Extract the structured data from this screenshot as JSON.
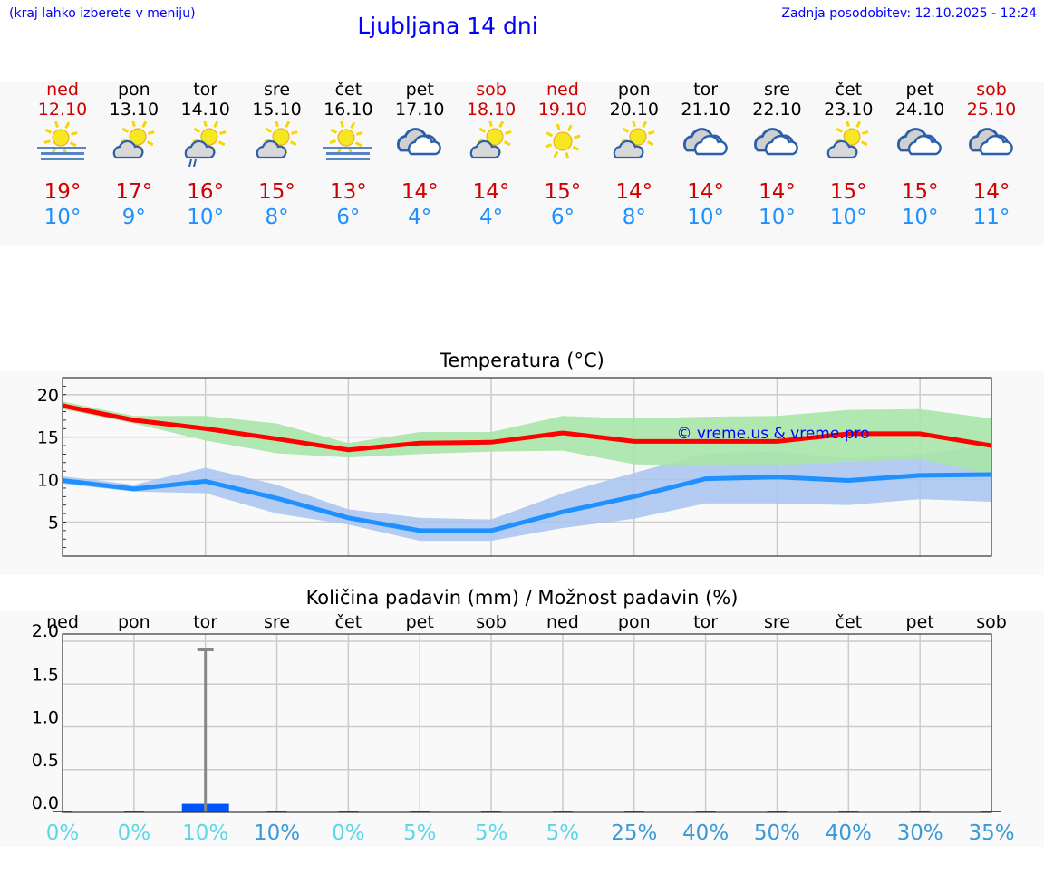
{
  "header": {
    "menu_note": "(kraj lahko izberete v meniju)",
    "title": "Ljubljana 14 dni",
    "updated": "Zadnja posodobitev: 12.10.2025 - 12:24"
  },
  "colors": {
    "weekend": "#d00000",
    "max_temp": "#d00000",
    "min_temp": "#1e90ff",
    "max_line": "#ff0000",
    "min_line": "#1e90ff",
    "max_band": "#a8e6a8",
    "min_band": "#a8c4f0",
    "precip_bar": "#0055ff",
    "pct_low": "#5ad8e8",
    "pct_high": "#3a9ad8"
  },
  "days": [
    {
      "name": "ned",
      "date": "12.10",
      "weekend": true,
      "icon": "fog-sun-icon",
      "max": "19°",
      "min": "10°"
    },
    {
      "name": "pon",
      "date": "13.10",
      "weekend": false,
      "icon": "partly-cloudy-icon",
      "max": "17°",
      "min": "9°"
    },
    {
      "name": "tor",
      "date": "14.10",
      "weekend": false,
      "icon": "partly-cloudy-rain-icon",
      "max": "16°",
      "min": "10°"
    },
    {
      "name": "sre",
      "date": "15.10",
      "weekend": false,
      "icon": "partly-cloudy-icon",
      "max": "15°",
      "min": "8°"
    },
    {
      "name": "čet",
      "date": "16.10",
      "weekend": false,
      "icon": "fog-sun-icon",
      "max": "13°",
      "min": "6°"
    },
    {
      "name": "pet",
      "date": "17.10",
      "weekend": false,
      "icon": "cloudy-icon",
      "max": "14°",
      "min": "4°"
    },
    {
      "name": "sob",
      "date": "18.10",
      "weekend": true,
      "icon": "partly-cloudy-icon",
      "max": "14°",
      "min": "4°"
    },
    {
      "name": "ned",
      "date": "19.10",
      "weekend": true,
      "icon": "sunny-icon",
      "max": "15°",
      "min": "6°"
    },
    {
      "name": "pon",
      "date": "20.10",
      "weekend": false,
      "icon": "partly-cloudy-icon",
      "max": "14°",
      "min": "8°"
    },
    {
      "name": "tor",
      "date": "21.10",
      "weekend": false,
      "icon": "cloudy-icon",
      "max": "14°",
      "min": "10°"
    },
    {
      "name": "sre",
      "date": "22.10",
      "weekend": false,
      "icon": "cloudy-icon",
      "max": "14°",
      "min": "10°"
    },
    {
      "name": "čet",
      "date": "23.10",
      "weekend": false,
      "icon": "partly-cloudy-icon",
      "max": "15°",
      "min": "10°"
    },
    {
      "name": "pet",
      "date": "24.10",
      "weekend": false,
      "icon": "cloudy-icon",
      "max": "15°",
      "min": "10°"
    },
    {
      "name": "sob",
      "date": "25.10",
      "weekend": true,
      "icon": "cloudy-icon",
      "max": "14°",
      "min": "11°"
    }
  ],
  "chart_data": [
    {
      "type": "line",
      "title": "Temperatura (°C)",
      "watermark": "© vreme.us & vreme.pro",
      "ylim": [
        1,
        22
      ],
      "yticks": [
        5,
        10,
        15,
        20
      ],
      "grid": true,
      "series": [
        {
          "role": "max",
          "values": [
            18.7,
            17.0,
            16.0,
            14.8,
            13.5,
            14.3,
            14.4,
            15.5,
            14.5,
            14.5,
            14.5,
            15.4,
            15.4,
            14.0
          ],
          "band_high": [
            19.2,
            17.5,
            17.5,
            16.6,
            14.3,
            15.6,
            15.6,
            17.5,
            17.2,
            17.4,
            17.5,
            18.2,
            18.3,
            17.2
          ],
          "band_low": [
            18.3,
            16.6,
            14.6,
            13.1,
            12.6,
            13.0,
            13.3,
            13.4,
            11.8,
            11.6,
            11.7,
            12.1,
            12.4,
            10.6
          ]
        },
        {
          "role": "min",
          "values": [
            9.9,
            8.9,
            9.8,
            7.8,
            5.5,
            4.0,
            4.0,
            6.2,
            8.0,
            10.1,
            10.3,
            9.9,
            10.5,
            10.6
          ],
          "band_high": [
            10.4,
            9.4,
            11.4,
            9.4,
            6.5,
            5.5,
            5.3,
            8.4,
            10.8,
            13.1,
            13.3,
            12.5,
            13.0,
            14.0
          ],
          "band_low": [
            9.5,
            8.6,
            8.4,
            6.0,
            4.7,
            2.8,
            2.8,
            4.3,
            5.4,
            7.2,
            7.2,
            7.0,
            7.7,
            7.4
          ]
        }
      ]
    },
    {
      "type": "bar",
      "title": "Količina padavin (mm) / Možnost padavin (%)",
      "categories": [
        "ned",
        "pon",
        "tor",
        "sre",
        "čet",
        "pet",
        "sob",
        "ned",
        "pon",
        "tor",
        "sre",
        "čet",
        "pet",
        "sob"
      ],
      "ylim": [
        0,
        2.0
      ],
      "yticks": [
        "0.0",
        "0.5",
        "1.0",
        "1.5",
        "2.0"
      ],
      "values": [
        0,
        0,
        0.1,
        0,
        0,
        0,
        0,
        0,
        0,
        0,
        0,
        0,
        0,
        0
      ],
      "error_high": [
        0,
        0,
        1.9,
        0,
        0,
        0,
        0,
        0,
        0,
        0,
        0,
        0,
        0,
        0
      ],
      "probability": [
        "0%",
        "0%",
        "10%",
        "10%",
        "0%",
        "5%",
        "5%",
        "5%",
        "25%",
        "40%",
        "50%",
        "40%",
        "30%",
        "35%"
      ],
      "probability_high": [
        false,
        false,
        false,
        true,
        false,
        false,
        false,
        false,
        true,
        true,
        true,
        true,
        true,
        true
      ]
    }
  ]
}
